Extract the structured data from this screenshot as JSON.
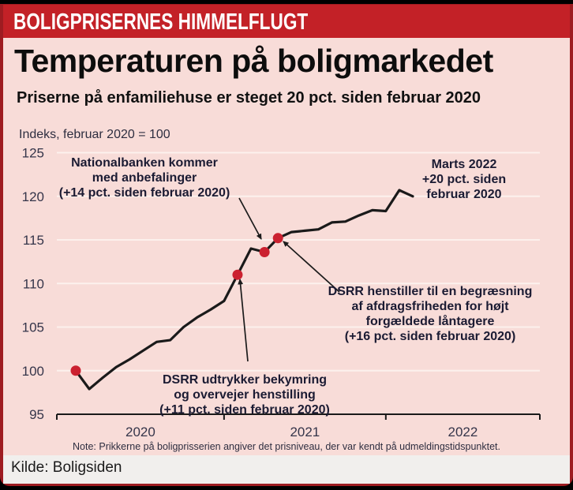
{
  "banner": {
    "title": "BOLIGPRISERNES HIMMELFLUGT"
  },
  "header": {
    "title": "Temperaturen på boligmarkedet",
    "subtitle": "Priserne på enfamiliehuse er steget 20 pct. siden februar 2020"
  },
  "chart_data": {
    "type": "line",
    "title": "Temperaturen på boligmarkedet",
    "subtitle": "Priserne på enfamiliehuse er steget 20 pct. siden februar 2020",
    "unit_label": "Indeks, februar 2020 = 100",
    "xlabel": "",
    "ylabel": "Indeks, februar 2020 = 100",
    "ylim": [
      95,
      125
    ],
    "grid": "horizontal",
    "legend": "none",
    "x": [
      "feb 2020",
      "mar 2020",
      "apr 2020",
      "maj 2020",
      "jun 2020",
      "jul 2020",
      "aug 2020",
      "sep 2020",
      "okt 2020",
      "nov 2020",
      "dec 2020",
      "jan 2021",
      "feb 2021",
      "mar 2021",
      "apr 2021",
      "maj 2021",
      "jun 2021",
      "jul 2021",
      "aug 2021",
      "sep 2021",
      "okt 2021",
      "nov 2021",
      "dec 2021",
      "jan 2022",
      "feb 2022",
      "mar 2022"
    ],
    "values": [
      100.0,
      97.9,
      99.2,
      100.4,
      101.3,
      102.3,
      103.3,
      103.5,
      105.0,
      106.1,
      107.0,
      108.0,
      111.0,
      114.0,
      113.6,
      115.2,
      115.9,
      116.05,
      116.2,
      117.0,
      117.1,
      117.8,
      118.4,
      118.3,
      120.7,
      120.0
    ],
    "y_ticks": [
      95,
      100,
      105,
      110,
      115,
      120,
      125
    ],
    "x_tick_labels": [
      "2020",
      "2021",
      "2022"
    ],
    "dots": [
      {
        "i": 0,
        "value": 100.0
      },
      {
        "i": 12,
        "value": 111.0
      },
      {
        "i": 14,
        "value": 113.6
      },
      {
        "i": 15,
        "value": 115.2
      }
    ],
    "annotations": [
      {
        "id": "nationalbanken",
        "lines": [
          "Nationalbanken kommer",
          "med anbefalinger",
          "(+14 pct. siden februar 2020)"
        ]
      },
      {
        "id": "marts2022",
        "lines": [
          "Marts 2022",
          "+20 pct. siden",
          "februar 2020"
        ]
      },
      {
        "id": "dsrr-henstiller",
        "lines": [
          "DSRR henstiller til en begræsning",
          "af afdragsfriheden for højt",
          "forgældede låntagere",
          "(+16 pct. siden februar 2020)"
        ]
      },
      {
        "id": "dsrr-udtrykker",
        "lines": [
          "DSRR udtrykker bekymring",
          "og overvejer henstilling",
          "(+11 pct. siden februar 2020)"
        ]
      }
    ]
  },
  "note": {
    "text": "Note: Prikkerne på boligprisserien angiver det prisniveau, der var kendt på udmeldingstidspunktet."
  },
  "source": {
    "text": "Kilde: Boligsiden"
  },
  "colors": {
    "banner_red": "#c32127",
    "frame_dark_red": "#9e1c21",
    "background_pink": "#f8dcd8",
    "gridline": "#fcf1ed",
    "line_black": "#1a1a1a",
    "dot_red": "#cb2130",
    "annotation_text": "#1b1b33",
    "axis_black": "#1a1a1a",
    "source_bar": "#f1efed"
  }
}
